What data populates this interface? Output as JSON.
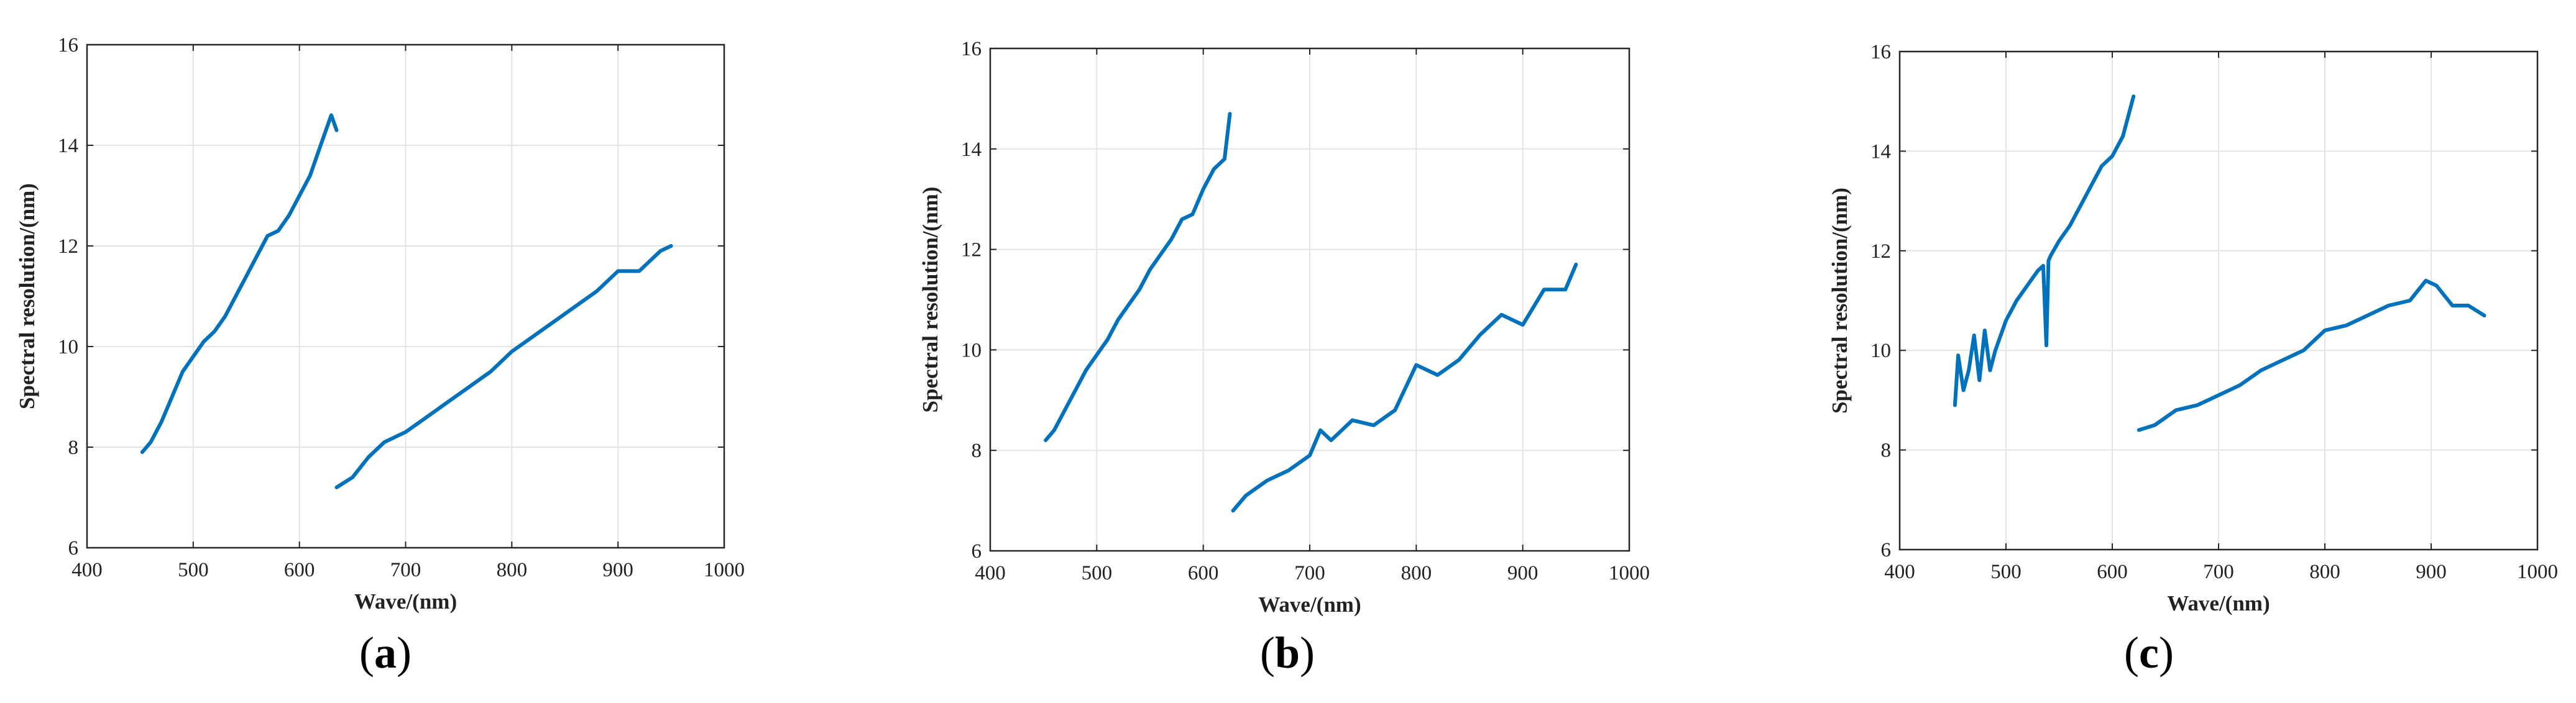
{
  "chart_data": [
    {
      "type": "line",
      "caption": "a",
      "xlabel": "Wave/(nm)",
      "ylabel": "Spectral resolution/(nm)",
      "xlim": [
        400,
        1000
      ],
      "ylim": [
        6,
        16
      ],
      "xticks": [
        400,
        500,
        600,
        700,
        800,
        900,
        1000
      ],
      "yticks": [
        6,
        8,
        10,
        12,
        14,
        16
      ],
      "grid": true,
      "color": "#0072BD",
      "series": [
        {
          "x": [
            452,
            460,
            470,
            480,
            490,
            500,
            510,
            520,
            530,
            540,
            550,
            560,
            570,
            580,
            590,
            600,
            610,
            620,
            630,
            635
          ],
          "y": [
            7.9,
            8.1,
            8.5,
            9.0,
            9.5,
            9.8,
            10.1,
            10.3,
            10.6,
            11.0,
            11.4,
            11.8,
            12.2,
            12.3,
            12.6,
            13.0,
            13.4,
            14.0,
            14.6,
            14.3
          ]
        },
        {
          "x": [
            635,
            650,
            665,
            680,
            700,
            720,
            740,
            760,
            780,
            800,
            820,
            840,
            860,
            880,
            900,
            920,
            940,
            950
          ],
          "y": [
            7.2,
            7.4,
            7.8,
            8.1,
            8.3,
            8.6,
            8.9,
            9.2,
            9.5,
            9.9,
            10.2,
            10.5,
            10.8,
            11.1,
            11.5,
            11.5,
            11.9,
            12.0
          ]
        }
      ]
    },
    {
      "type": "line",
      "caption": "b",
      "xlabel": "Wave/(nm)",
      "ylabel": "Spectral resolution/(nm)",
      "xlim": [
        400,
        1000
      ],
      "ylim": [
        6,
        16
      ],
      "xticks": [
        400,
        500,
        600,
        700,
        800,
        900,
        1000
      ],
      "yticks": [
        6,
        8,
        10,
        12,
        14,
        16
      ],
      "grid": true,
      "color": "#0072BD",
      "series": [
        {
          "x": [
            452,
            460,
            470,
            480,
            490,
            500,
            510,
            520,
            530,
            540,
            550,
            560,
            570,
            580,
            590,
            600,
            610,
            620,
            625
          ],
          "y": [
            8.2,
            8.4,
            8.8,
            9.2,
            9.6,
            9.9,
            10.2,
            10.6,
            10.9,
            11.2,
            11.6,
            11.9,
            12.2,
            12.6,
            12.7,
            13.2,
            13.6,
            13.8,
            14.7
          ]
        },
        {
          "x": [
            628,
            640,
            660,
            680,
            700,
            710,
            720,
            740,
            760,
            780,
            800,
            820,
            840,
            860,
            880,
            900,
            920,
            940,
            950
          ],
          "y": [
            6.8,
            7.1,
            7.4,
            7.6,
            7.9,
            8.4,
            8.2,
            8.6,
            8.5,
            8.8,
            9.7,
            9.5,
            9.8,
            10.3,
            10.7,
            10.5,
            11.2,
            11.2,
            11.7
          ]
        }
      ]
    },
    {
      "type": "line",
      "caption": "c",
      "xlabel": "Wave/(nm)",
      "ylabel": "Spectral resolution/(nm)",
      "xlim": [
        400,
        1000
      ],
      "ylim": [
        6,
        16
      ],
      "xticks": [
        400,
        500,
        600,
        700,
        800,
        900,
        1000
      ],
      "yticks": [
        6,
        8,
        10,
        12,
        14,
        16
      ],
      "grid": true,
      "color": "#0072BD",
      "series": [
        {
          "x": [
            452,
            455,
            460,
            465,
            470,
            475,
            480,
            485,
            490,
            500,
            510,
            520,
            530,
            535,
            538,
            540,
            542,
            550,
            560,
            570,
            580,
            590,
            600,
            610,
            620
          ],
          "y": [
            8.9,
            9.9,
            9.2,
            9.6,
            10.3,
            9.4,
            10.4,
            9.6,
            10.0,
            10.6,
            11.0,
            11.3,
            11.6,
            11.7,
            10.1,
            11.8,
            11.9,
            12.2,
            12.5,
            12.9,
            13.3,
            13.7,
            13.9,
            14.3,
            15.1
          ]
        },
        {
          "x": [
            625,
            640,
            660,
            680,
            700,
            720,
            740,
            760,
            780,
            800,
            820,
            840,
            860,
            880,
            895,
            905,
            920,
            935,
            950
          ],
          "y": [
            8.4,
            8.5,
            8.8,
            8.9,
            9.1,
            9.3,
            9.6,
            9.8,
            10.0,
            10.4,
            10.5,
            10.7,
            10.9,
            11.0,
            11.4,
            11.3,
            10.9,
            10.9,
            10.7
          ]
        }
      ]
    }
  ]
}
